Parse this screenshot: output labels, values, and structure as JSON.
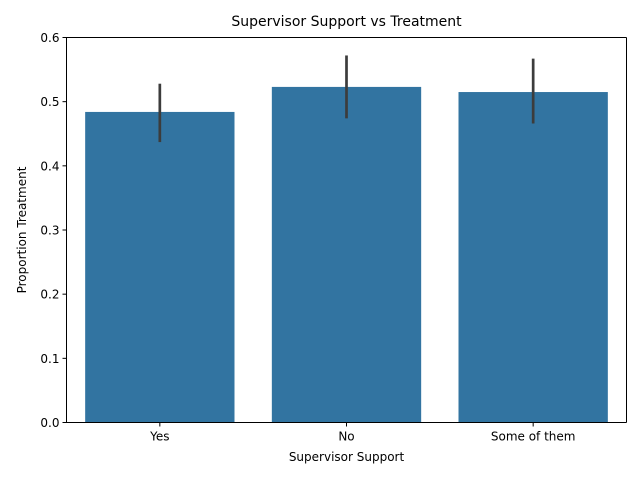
{
  "chart_data": {
    "type": "bar",
    "title": "Supervisor Support vs Treatment",
    "xlabel": "Supervisor Support",
    "ylabel": "Proportion Treatment",
    "categories": [
      "Yes",
      "No",
      "Some of them"
    ],
    "values": [
      0.484,
      0.523,
      0.515
    ],
    "ci_low": [
      0.437,
      0.474,
      0.466
    ],
    "ci_high": [
      0.528,
      0.572,
      0.567
    ],
    "ylim": [
      0,
      0.6
    ],
    "yticks": [
      "0.0",
      "0.1",
      "0.2",
      "0.3",
      "0.4",
      "0.5",
      "0.6"
    ],
    "bar_color": "#3274a1",
    "error_color": "#3c3c3c",
    "grid": false,
    "legend": "none"
  }
}
